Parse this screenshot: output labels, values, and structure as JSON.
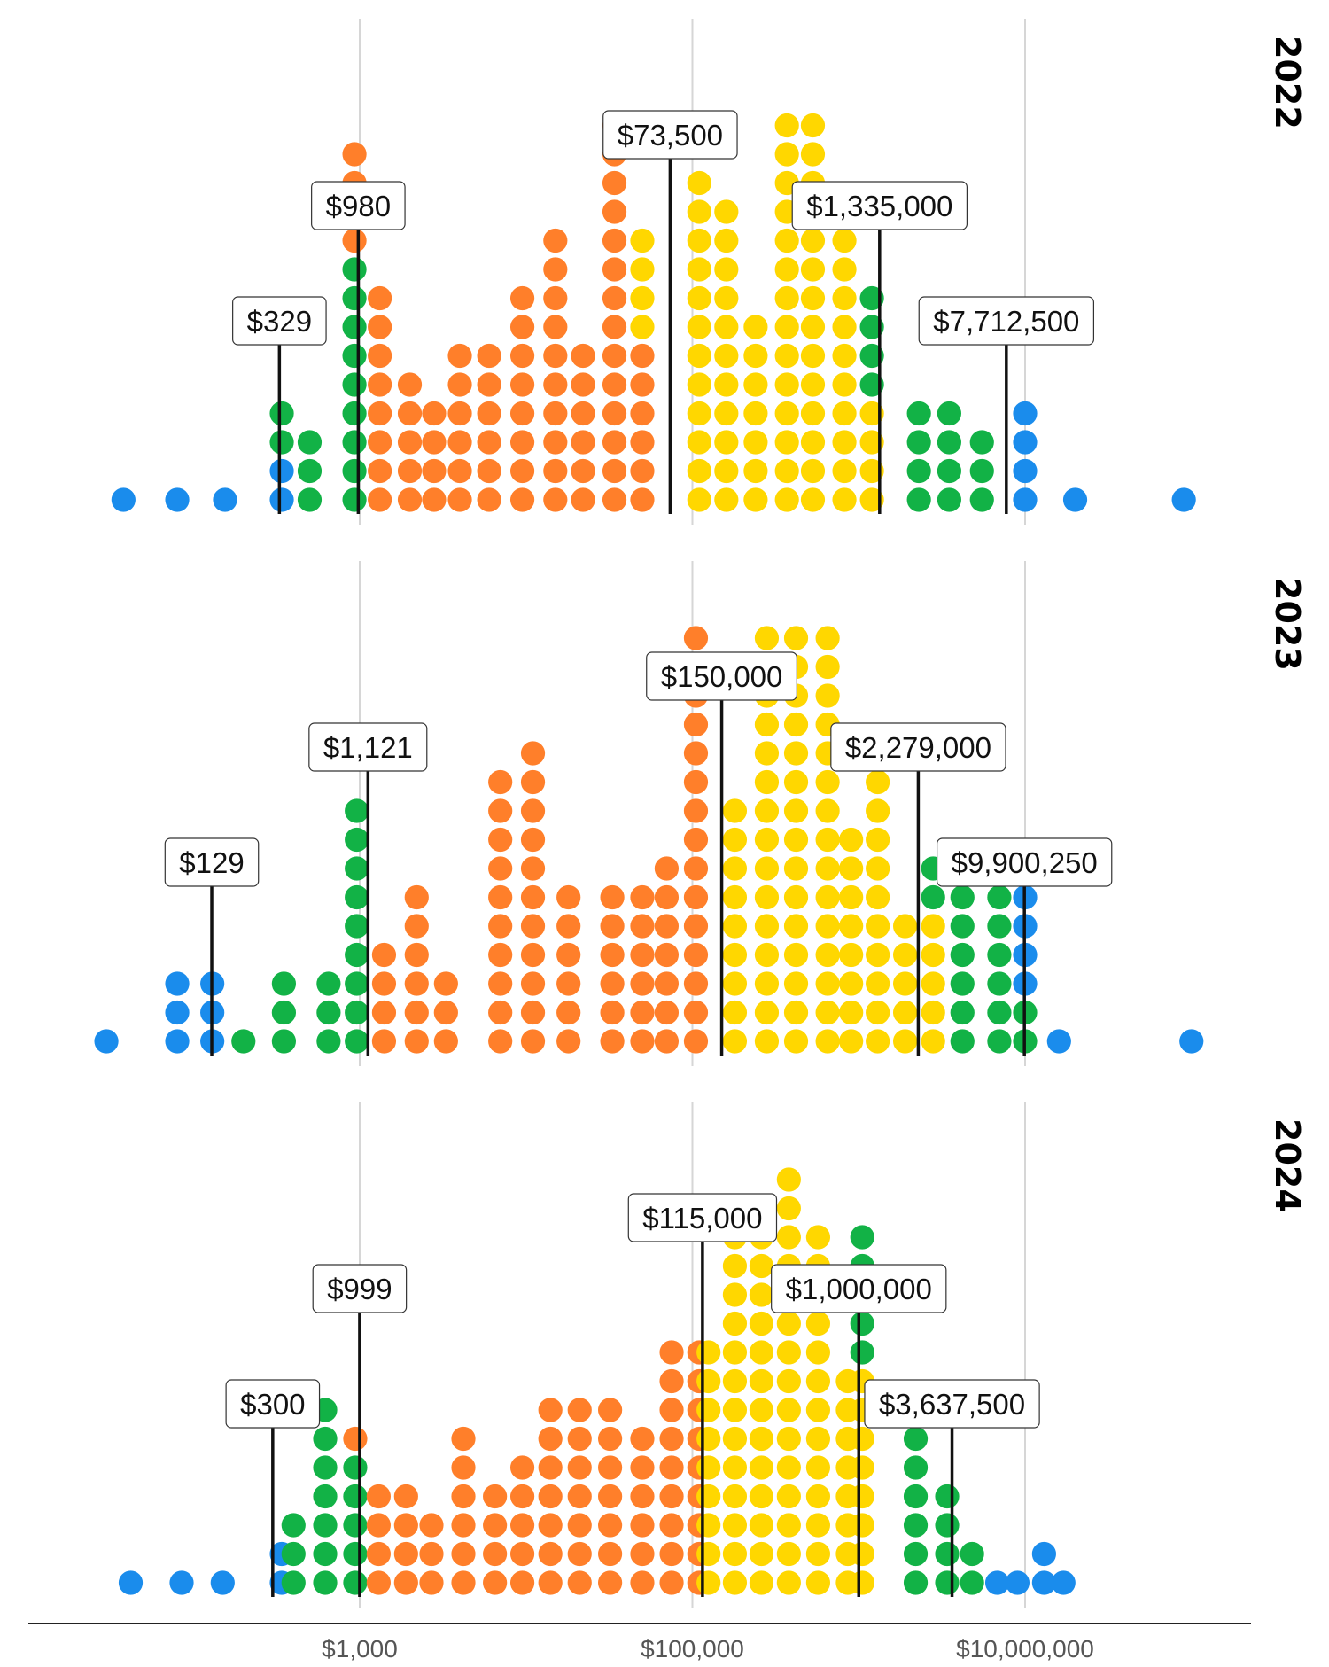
{
  "chart_data": {
    "type": "scatter",
    "subtype": "dot-histogram",
    "xscale": "log",
    "xlim": [
      25,
      2000000000
    ],
    "x_ticks": [
      {
        "value": 1000,
        "label": "$1,000"
      },
      {
        "value": 100000,
        "label": "$100,000"
      },
      {
        "value": 10000000,
        "label": "$10,000,000"
      }
    ],
    "grid": true,
    "colors": {
      "blue": "#1a8cec",
      "green": "#12b246",
      "orange": "#ff7f2a",
      "yellow": "#ffd700"
    },
    "panels": [
      {
        "year": "2022",
        "markers": [
          {
            "value": 329,
            "label": "$329"
          },
          {
            "value": 980,
            "label": "$980"
          },
          {
            "value": 73500,
            "label": "$73,500"
          },
          {
            "value": 1335000,
            "label": "$1,335,000"
          },
          {
            "value": 7712500,
            "label": "$7,712,500"
          }
        ],
        "columns": [
          {
            "x": 38,
            "stack": "b"
          },
          {
            "x": 80,
            "stack": "b"
          },
          {
            "x": 155,
            "stack": "b"
          },
          {
            "x": 340,
            "stack": "bbgg"
          },
          {
            "x": 500,
            "stack": "ggg"
          },
          {
            "x": 930,
            "stack": "gggggggggoooo"
          },
          {
            "x": 1320,
            "stack": "oooooooo"
          },
          {
            "x": 2000,
            "stack": "ooooo"
          },
          {
            "x": 2800,
            "stack": "oooo"
          },
          {
            "x": 4000,
            "stack": "oooooo"
          },
          {
            "x": 6000,
            "stack": "oooooo"
          },
          {
            "x": 9500,
            "stack": "oooooooo"
          },
          {
            "x": 15000,
            "stack": "oooooooooo"
          },
          {
            "x": 22000,
            "stack": "oooooo"
          },
          {
            "x": 34000,
            "stack": "oooooooooooooo"
          },
          {
            "x": 50000,
            "stack": "ooooooyyyy"
          },
          {
            "x": 110000,
            "stack": "yyyyyyyyyyyy"
          },
          {
            "x": 160000,
            "stack": "yyyyyyyyyyy"
          },
          {
            "x": 240000,
            "stack": "yyyyyyy"
          },
          {
            "x": 370000,
            "stack": "yyyyyyyyyyyyyy"
          },
          {
            "x": 530000,
            "stack": "yyyyyyyyyyyyyy"
          },
          {
            "x": 820000,
            "stack": "yyyyyyyyyyy"
          },
          {
            "x": 1200000,
            "stack": "yyyygggg"
          },
          {
            "x": 2300000,
            "stack": "gggg"
          },
          {
            "x": 3500000,
            "stack": "gggg"
          },
          {
            "x": 5500000,
            "stack": "ggg"
          },
          {
            "x": 10000000,
            "stack": "bbbb"
          },
          {
            "x": 20000000,
            "stack": "b"
          },
          {
            "x": 90000000,
            "stack": "b"
          }
        ]
      },
      {
        "year": "2023",
        "markers": [
          {
            "value": 129,
            "label": "$129"
          },
          {
            "value": 1121,
            "label": "$1,121"
          },
          {
            "value": 150000,
            "label": "$150,000"
          },
          {
            "value": 2279000,
            "label": "$2,279,000"
          },
          {
            "value": 9900250,
            "label": "$9,900,250"
          }
        ],
        "columns": [
          {
            "x": 30,
            "stack": "b"
          },
          {
            "x": 80,
            "stack": "bbb"
          },
          {
            "x": 130,
            "stack": "bbb"
          },
          {
            "x": 200,
            "stack": "g"
          },
          {
            "x": 350,
            "stack": "ggg"
          },
          {
            "x": 650,
            "stack": "ggg"
          },
          {
            "x": 960,
            "stack": "ggggggggg"
          },
          {
            "x": 1400,
            "stack": "oooo"
          },
          {
            "x": 2200,
            "stack": "oooooo"
          },
          {
            "x": 3300,
            "stack": "ooo"
          },
          {
            "x": 7000,
            "stack": "oooooooooo"
          },
          {
            "x": 11000,
            "stack": "ooooooooooo"
          },
          {
            "x": 18000,
            "stack": "oooooo"
          },
          {
            "x": 33000,
            "stack": "oooooo"
          },
          {
            "x": 50000,
            "stack": "oooooo"
          },
          {
            "x": 70000,
            "stack": "ooooooo"
          },
          {
            "x": 105000,
            "stack": "ooooooooooooooo"
          },
          {
            "x": 180000,
            "stack": "yyyyyyyyy"
          },
          {
            "x": 280000,
            "stack": "yyyyyyyyyyyyyyy"
          },
          {
            "x": 420000,
            "stack": "yyyyyyyyyyyyyyy"
          },
          {
            "x": 650000,
            "stack": "yyyyyyyyyyyyyyy"
          },
          {
            "x": 900000,
            "stack": "yyyyyyyy"
          },
          {
            "x": 1300000,
            "stack": "yyyyyyyyyy"
          },
          {
            "x": 1900000,
            "stack": "yyyyy"
          },
          {
            "x": 2800000,
            "stack": "yyyyygg"
          },
          {
            "x": 4200000,
            "stack": "gggggg"
          },
          {
            "x": 7000000,
            "stack": "gggggg"
          },
          {
            "x": 10000000,
            "stack": "ggbbbb"
          },
          {
            "x": 16000000,
            "stack": "b"
          },
          {
            "x": 100000000,
            "stack": "b"
          }
        ]
      },
      {
        "year": "2024",
        "markers": [
          {
            "value": 300,
            "label": "$300"
          },
          {
            "value": 999,
            "label": "$999"
          },
          {
            "value": 115000,
            "label": "$115,000"
          },
          {
            "value": 1000000,
            "label": "$1,000,000"
          },
          {
            "value": 3637500,
            "label": "$3,637,500"
          }
        ],
        "columns": [
          {
            "x": 42,
            "stack": "b"
          },
          {
            "x": 85,
            "stack": "b"
          },
          {
            "x": 150,
            "stack": "b"
          },
          {
            "x": 340,
            "stack": "bb"
          },
          {
            "x": 400,
            "stack": "ggg"
          },
          {
            "x": 620,
            "stack": "ggggggg"
          },
          {
            "x": 940,
            "stack": "gggggo"
          },
          {
            "x": 1300,
            "stack": "oooo"
          },
          {
            "x": 1900,
            "stack": "oooo"
          },
          {
            "x": 2700,
            "stack": "ooo"
          },
          {
            "x": 4200,
            "stack": "oooooo"
          },
          {
            "x": 6500,
            "stack": "oooo"
          },
          {
            "x": 9500,
            "stack": "ooooo"
          },
          {
            "x": 14000,
            "stack": "ooooooo"
          },
          {
            "x": 21000,
            "stack": "ooooooo"
          },
          {
            "x": 32000,
            "stack": "ooooooo"
          },
          {
            "x": 50000,
            "stack": "oooooo"
          },
          {
            "x": 75000,
            "stack": "ooooooooo"
          },
          {
            "x": 110000,
            "stack": "ooooooooo"
          },
          {
            "x": 125000,
            "stack": "yyyyyyyyy"
          },
          {
            "x": 180000,
            "stack": "yyyyyyyyyyyyy"
          },
          {
            "x": 260000,
            "stack": "yyyyyyyyyyyyy"
          },
          {
            "x": 380000,
            "stack": "yyyyyyyyyyyyyyy"
          },
          {
            "x": 570000,
            "stack": "yyyyyyyyyyyyy"
          },
          {
            "x": 860000,
            "stack": "yyyyyyyy"
          },
          {
            "x": 1050000,
            "stack": "yyyyyyyyggggg"
          },
          {
            "x": 2200000,
            "stack": "gggggg"
          },
          {
            "x": 3400000,
            "stack": "gggg"
          },
          {
            "x": 4800000,
            "stack": "gg"
          },
          {
            "x": 6800000,
            "stack": "b"
          },
          {
            "x": 9000000,
            "stack": "b"
          },
          {
            "x": 13000000,
            "stack": "bb"
          },
          {
            "x": 17000000,
            "stack": "b"
          }
        ]
      }
    ]
  }
}
